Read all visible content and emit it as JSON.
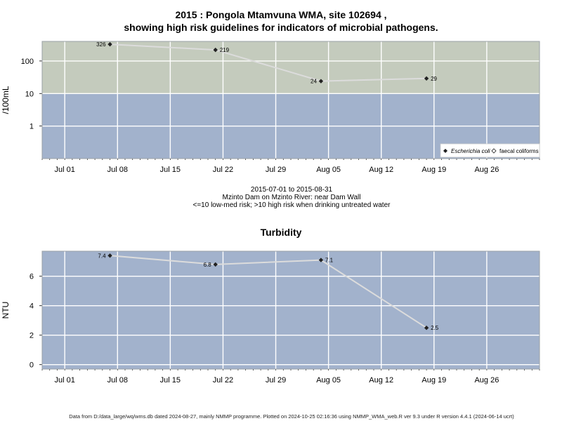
{
  "title_line1": "2015 : Pongola Mtamvuna WMA, site 102694 ,",
  "title_line2": "showing high risk guidelines for indicators of microbial pathogens.",
  "caption_line1": "2015-07-01 to 2015-08-31",
  "caption_line2": "Mzinto Dam on Mzinto River: near Dam Wall",
  "caption_line3": "<=10 low-med risk; >10 high risk when drinking untreated water",
  "turbidity_title": "Turbidity",
  "footer": "Data from D:/data_large/wq/wms.db dated 2024-08-27, mainly NMMP programme. Plotted on 2024-10-25 02:16:36 using NMMP_WMA_web.R ver 9.3 under R version 4.4.1 (2024-06-14 ucrt)",
  "colors": {
    "high_risk_band": "#c4cbbd",
    "low_risk_band": "#a2b2cc",
    "grid": "#ffffff",
    "line": "#dcdcdc",
    "marker": "#222222"
  },
  "chart_data": [
    {
      "type": "line",
      "title": "2015 : Pongola Mtamvuna WMA, site 102694 , showing high risk guidelines for indicators of microbial pathogens.",
      "ylabel": "/100mL",
      "yscale": "log",
      "ylim": [
        0.1,
        400
      ],
      "yticks": [
        "1",
        "10",
        "100"
      ],
      "x_tick_labels": [
        "Jul 01",
        "Jul 08",
        "Jul 15",
        "Jul 22",
        "Jul 29",
        "Aug 05",
        "Aug 12",
        "Aug 19",
        "Aug 26"
      ],
      "x_tick_dates": [
        "2015-07-01",
        "2015-07-08",
        "2015-07-15",
        "2015-07-22",
        "2015-07-29",
        "2015-08-05",
        "2015-08-12",
        "2015-08-19",
        "2015-08-26"
      ],
      "xlim": [
        "2015-06-28",
        "2015-09-02"
      ],
      "threshold": 10,
      "legend": {
        "placement": "bottom-right",
        "entries": [
          "Escherichia coli",
          "faecal coliforms"
        ]
      },
      "series": [
        {
          "name": "Escherichia coli",
          "x": [
            "2015-07-07",
            "2015-07-21",
            "2015-08-04",
            "2015-08-18"
          ],
          "values": [
            326,
            219,
            24,
            29
          ],
          "labels": [
            "326",
            "219",
            "24",
            "29"
          ]
        }
      ]
    },
    {
      "type": "line",
      "title": "Turbidity",
      "ylabel": "NTU",
      "ylim": [
        -0.3,
        7.7
      ],
      "yticks": [
        "0",
        "2",
        "4",
        "6"
      ],
      "x_tick_labels": [
        "Jul 01",
        "Jul 08",
        "Jul 15",
        "Jul 22",
        "Jul 29",
        "Aug 05",
        "Aug 12",
        "Aug 19",
        "Aug 26"
      ],
      "x_tick_dates": [
        "2015-07-01",
        "2015-07-08",
        "2015-07-15",
        "2015-07-22",
        "2015-07-29",
        "2015-08-05",
        "2015-08-12",
        "2015-08-19",
        "2015-08-26"
      ],
      "xlim": [
        "2015-06-28",
        "2015-09-02"
      ],
      "series": [
        {
          "x": [
            "2015-07-07",
            "2015-07-21",
            "2015-08-04",
            "2015-08-18"
          ],
          "values": [
            7.4,
            6.8,
            7.1,
            2.5
          ],
          "labels": [
            "7.4",
            "6.8",
            "7.1",
            "2.5"
          ]
        }
      ]
    }
  ]
}
